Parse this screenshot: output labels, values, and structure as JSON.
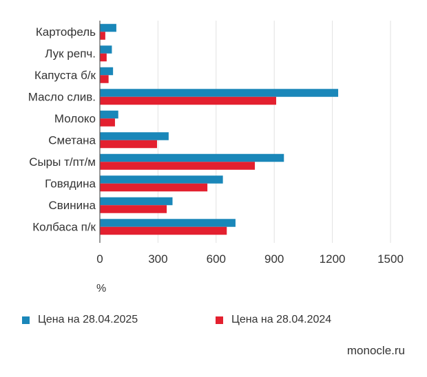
{
  "chart_data": {
    "type": "bar",
    "orientation": "horizontal",
    "categories": [
      "Картофель",
      "Лук репч.",
      "Капуста б/к",
      "Масло слив.",
      "Молоко",
      "Сметана",
      "Сыры т/пт/м",
      "Говядина",
      "Свинина",
      "Колбаса п/к"
    ],
    "series": [
      {
        "name": "Цена на 28.04.2025",
        "color": "#1a87b9",
        "values": [
          85,
          62,
          68,
          1230,
          95,
          355,
          950,
          635,
          375,
          700
        ]
      },
      {
        "name": "Цена на 28.04.2024",
        "color": "#e3202f",
        "values": [
          28,
          35,
          45,
          910,
          78,
          295,
          800,
          555,
          345,
          655
        ]
      }
    ],
    "xlim": [
      0,
      1500
    ],
    "xticks": [
      0,
      300,
      600,
      900,
      1200,
      1500
    ],
    "xlabel": "%",
    "grid": true,
    "legend_position": "bottom"
  },
  "source": "monocle.ru"
}
